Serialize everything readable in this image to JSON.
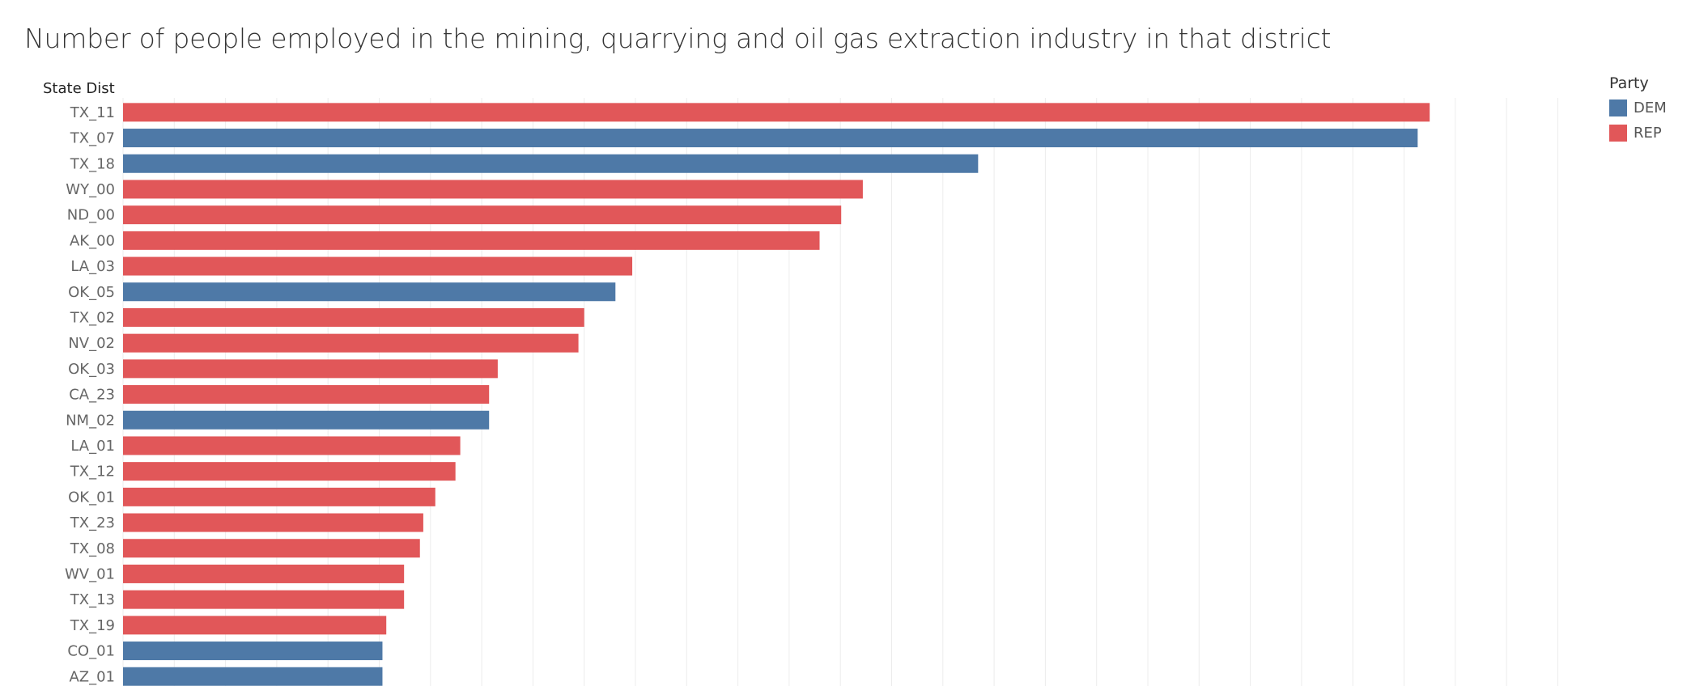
{
  "chart_data": {
    "type": "bar",
    "orientation": "horizontal",
    "title": "Number of people employed in the mining, quarrying and oil gas extraction industry in that district",
    "ylabel": "State Dist",
    "xlabel": "",
    "grid": true,
    "legend": {
      "title": "Party",
      "placement": "top-right",
      "entries": [
        {
          "label": "DEM",
          "color": "#4e79a7"
        },
        {
          "label": "REP",
          "color": "#e15759"
        }
      ]
    },
    "xlim": [
      0,
      29000
    ],
    "categories": [
      "TX_11",
      "TX_07",
      "TX_18",
      "WY_00",
      "ND_00",
      "AK_00",
      "LA_03",
      "OK_05",
      "TX_02",
      "NV_02",
      "OK_03",
      "CA_23",
      "NM_02",
      "LA_01",
      "TX_12",
      "OK_01",
      "TX_23",
      "TX_08",
      "WV_01",
      "TX_13",
      "TX_19",
      "CO_01",
      "AZ_01"
    ],
    "values": [
      27200,
      26950,
      17800,
      15400,
      14950,
      14500,
      10600,
      10250,
      9600,
      9480,
      7800,
      7620,
      7620,
      7020,
      6920,
      6500,
      6250,
      6180,
      5850,
      5850,
      5480,
      5400,
      5400
    ],
    "party": [
      "REP",
      "DEM",
      "DEM",
      "REP",
      "REP",
      "REP",
      "REP",
      "DEM",
      "REP",
      "REP",
      "REP",
      "REP",
      "DEM",
      "REP",
      "REP",
      "REP",
      "REP",
      "REP",
      "REP",
      "REP",
      "REP",
      "DEM",
      "DEM"
    ]
  }
}
